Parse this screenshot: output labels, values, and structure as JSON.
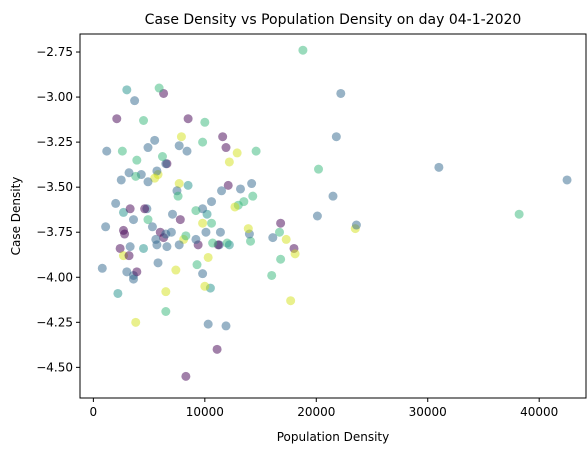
{
  "chart_data": {
    "type": "scatter",
    "title": "Case Density vs Population Density on day 04-1-2020",
    "xlabel": "Population Density",
    "ylabel": "Case Density",
    "xlim": [
      -1200,
      44200
    ],
    "ylim": [
      -4.67,
      -2.65
    ],
    "xticks": [
      0,
      10000,
      20000,
      30000,
      40000
    ],
    "xtick_labels": [
      "0",
      "10000",
      "20000",
      "30000",
      "40000"
    ],
    "yticks": [
      -2.75,
      -3.0,
      -3.25,
      -3.5,
      -3.75,
      -4.0,
      -4.25,
      -4.5
    ],
    "ytick_labels": [
      "−2.75",
      "−3.00",
      "−3.25",
      "−3.50",
      "−3.75",
      "−4.00",
      "−4.25",
      "−4.50"
    ],
    "grid": false,
    "legend": "none",
    "marker_alpha": 0.5,
    "colors": {
      "purple": "#440154",
      "blue": "#31688e",
      "teal": "#21918c",
      "green": "#35b779",
      "yellow": "#d4e21a"
    },
    "points": [
      {
        "x": 18800,
        "y": -2.74,
        "c": "green"
      },
      {
        "x": 22200,
        "y": -2.98,
        "c": "blue"
      },
      {
        "x": 21800,
        "y": -3.22,
        "c": "blue"
      },
      {
        "x": 31000,
        "y": -3.39,
        "c": "blue"
      },
      {
        "x": 42500,
        "y": -3.46,
        "c": "blue"
      },
      {
        "x": 20200,
        "y": -3.4,
        "c": "green"
      },
      {
        "x": 21500,
        "y": -3.55,
        "c": "blue"
      },
      {
        "x": 38200,
        "y": -3.65,
        "c": "green"
      },
      {
        "x": 20100,
        "y": -3.66,
        "c": "blue"
      },
      {
        "x": 23500,
        "y": -3.73,
        "c": "yellow"
      },
      {
        "x": 23600,
        "y": -3.71,
        "c": "blue"
      },
      {
        "x": 16800,
        "y": -3.7,
        "c": "purple"
      },
      {
        "x": 16700,
        "y": -3.75,
        "c": "green"
      },
      {
        "x": 17300,
        "y": -3.79,
        "c": "yellow"
      },
      {
        "x": 16100,
        "y": -3.78,
        "c": "blue"
      },
      {
        "x": 18000,
        "y": -3.84,
        "c": "purple"
      },
      {
        "x": 18100,
        "y": -3.87,
        "c": "yellow"
      },
      {
        "x": 16800,
        "y": -3.9,
        "c": "green"
      },
      {
        "x": 16000,
        "y": -3.99,
        "c": "green"
      },
      {
        "x": 17700,
        "y": -4.13,
        "c": "yellow"
      },
      {
        "x": 14600,
        "y": -3.3,
        "c": "green"
      },
      {
        "x": 14200,
        "y": -3.48,
        "c": "blue"
      },
      {
        "x": 14300,
        "y": -3.55,
        "c": "green"
      },
      {
        "x": 14100,
        "y": -3.8,
        "c": "green"
      },
      {
        "x": 14000,
        "y": -3.76,
        "c": "blue"
      },
      {
        "x": 13900,
        "y": -3.73,
        "c": "yellow"
      },
      {
        "x": 13500,
        "y": -3.58,
        "c": "green"
      },
      {
        "x": 13200,
        "y": -3.51,
        "c": "blue"
      },
      {
        "x": 13000,
        "y": -3.6,
        "c": "green"
      },
      {
        "x": 12900,
        "y": -3.31,
        "c": "yellow"
      },
      {
        "x": 12700,
        "y": -3.61,
        "c": "yellow"
      },
      {
        "x": 12200,
        "y": -3.36,
        "c": "yellow"
      },
      {
        "x": 12100,
        "y": -3.49,
        "c": "purple"
      },
      {
        "x": 11900,
        "y": -3.28,
        "c": "purple"
      },
      {
        "x": 11600,
        "y": -3.22,
        "c": "purple"
      },
      {
        "x": 11500,
        "y": -3.52,
        "c": "blue"
      },
      {
        "x": 11400,
        "y": -3.75,
        "c": "blue"
      },
      {
        "x": 11300,
        "y": -3.82,
        "c": "blue"
      },
      {
        "x": 11200,
        "y": -3.82,
        "c": "purple"
      },
      {
        "x": 12000,
        "y": -3.81,
        "c": "green"
      },
      {
        "x": 12200,
        "y": -3.82,
        "c": "teal"
      },
      {
        "x": 11100,
        "y": -4.4,
        "c": "purple"
      },
      {
        "x": 11900,
        "y": -4.27,
        "c": "blue"
      },
      {
        "x": 10300,
        "y": -4.26,
        "c": "blue"
      },
      {
        "x": 10500,
        "y": -4.06,
        "c": "teal"
      },
      {
        "x": 10000,
        "y": -4.05,
        "c": "yellow"
      },
      {
        "x": 9800,
        "y": -3.98,
        "c": "blue"
      },
      {
        "x": 10300,
        "y": -3.89,
        "c": "yellow"
      },
      {
        "x": 9300,
        "y": -3.93,
        "c": "green"
      },
      {
        "x": 10700,
        "y": -3.81,
        "c": "green"
      },
      {
        "x": 10100,
        "y": -3.75,
        "c": "blue"
      },
      {
        "x": 10600,
        "y": -3.7,
        "c": "green"
      },
      {
        "x": 10200,
        "y": -3.65,
        "c": "teal"
      },
      {
        "x": 9800,
        "y": -3.62,
        "c": "blue"
      },
      {
        "x": 10600,
        "y": -3.58,
        "c": "blue"
      },
      {
        "x": 9800,
        "y": -3.7,
        "c": "yellow"
      },
      {
        "x": 9400,
        "y": -3.82,
        "c": "purple"
      },
      {
        "x": 9200,
        "y": -3.79,
        "c": "blue"
      },
      {
        "x": 10000,
        "y": -3.14,
        "c": "green"
      },
      {
        "x": 9800,
        "y": -3.25,
        "c": "green"
      },
      {
        "x": 9200,
        "y": -3.63,
        "c": "green"
      },
      {
        "x": 8500,
        "y": -3.49,
        "c": "teal"
      },
      {
        "x": 8100,
        "y": -3.79,
        "c": "yellow"
      },
      {
        "x": 8300,
        "y": -3.77,
        "c": "green"
      },
      {
        "x": 7700,
        "y": -3.82,
        "c": "blue"
      },
      {
        "x": 7400,
        "y": -3.96,
        "c": "yellow"
      },
      {
        "x": 7700,
        "y": -3.48,
        "c": "yellow"
      },
      {
        "x": 7500,
        "y": -3.52,
        "c": "blue"
      },
      {
        "x": 7600,
        "y": -3.55,
        "c": "green"
      },
      {
        "x": 7700,
        "y": -3.27,
        "c": "blue"
      },
      {
        "x": 7900,
        "y": -3.22,
        "c": "yellow"
      },
      {
        "x": 7800,
        "y": -3.68,
        "c": "purple"
      },
      {
        "x": 7100,
        "y": -3.65,
        "c": "blue"
      },
      {
        "x": 7000,
        "y": -3.75,
        "c": "blue"
      },
      {
        "x": 8500,
        "y": -3.12,
        "c": "purple"
      },
      {
        "x": 8400,
        "y": -3.3,
        "c": "blue"
      },
      {
        "x": 6600,
        "y": -3.37,
        "c": "purple"
      },
      {
        "x": 6500,
        "y": -3.37,
        "c": "blue"
      },
      {
        "x": 6200,
        "y": -3.33,
        "c": "green"
      },
      {
        "x": 5800,
        "y": -3.43,
        "c": "yellow"
      },
      {
        "x": 5700,
        "y": -3.41,
        "c": "blue"
      },
      {
        "x": 5500,
        "y": -3.45,
        "c": "yellow"
      },
      {
        "x": 6300,
        "y": -2.98,
        "c": "purple"
      },
      {
        "x": 5900,
        "y": -2.95,
        "c": "green"
      },
      {
        "x": 5500,
        "y": -3.24,
        "c": "blue"
      },
      {
        "x": 4900,
        "y": -3.28,
        "c": "blue"
      },
      {
        "x": 4500,
        "y": -3.13,
        "c": "green"
      },
      {
        "x": 3900,
        "y": -3.35,
        "c": "green"
      },
      {
        "x": 3700,
        "y": -3.02,
        "c": "blue"
      },
      {
        "x": 3000,
        "y": -2.96,
        "c": "teal"
      },
      {
        "x": 4800,
        "y": -3.62,
        "c": "blue"
      },
      {
        "x": 4600,
        "y": -3.62,
        "c": "purple"
      },
      {
        "x": 4900,
        "y": -3.68,
        "c": "green"
      },
      {
        "x": 5300,
        "y": -3.72,
        "c": "blue"
      },
      {
        "x": 4900,
        "y": -3.47,
        "c": "blue"
      },
      {
        "x": 4300,
        "y": -3.43,
        "c": "blue"
      },
      {
        "x": 3800,
        "y": -3.44,
        "c": "green"
      },
      {
        "x": 3200,
        "y": -3.42,
        "c": "blue"
      },
      {
        "x": 2500,
        "y": -3.46,
        "c": "blue"
      },
      {
        "x": 2700,
        "y": -3.64,
        "c": "teal"
      },
      {
        "x": 3300,
        "y": -3.62,
        "c": "purple"
      },
      {
        "x": 3600,
        "y": -3.68,
        "c": "blue"
      },
      {
        "x": 2000,
        "y": -3.59,
        "c": "blue"
      },
      {
        "x": 1200,
        "y": -3.3,
        "c": "blue"
      },
      {
        "x": 2600,
        "y": -3.3,
        "c": "green"
      },
      {
        "x": 2100,
        "y": -3.12,
        "c": "purple"
      },
      {
        "x": 1100,
        "y": -3.72,
        "c": "blue"
      },
      {
        "x": 2700,
        "y": -3.74,
        "c": "purple"
      },
      {
        "x": 2800,
        "y": -3.76,
        "c": "purple"
      },
      {
        "x": 2400,
        "y": -3.84,
        "c": "purple"
      },
      {
        "x": 3300,
        "y": -3.83,
        "c": "blue"
      },
      {
        "x": 2700,
        "y": -3.88,
        "c": "yellow"
      },
      {
        "x": 3200,
        "y": -3.88,
        "c": "purple"
      },
      {
        "x": 800,
        "y": -3.95,
        "c": "blue"
      },
      {
        "x": 3000,
        "y": -3.97,
        "c": "blue"
      },
      {
        "x": 3600,
        "y": -3.99,
        "c": "blue"
      },
      {
        "x": 3900,
        "y": -3.97,
        "c": "purple"
      },
      {
        "x": 3600,
        "y": -4.01,
        "c": "blue"
      },
      {
        "x": 2200,
        "y": -4.09,
        "c": "teal"
      },
      {
        "x": 3800,
        "y": -4.25,
        "c": "yellow"
      },
      {
        "x": 4500,
        "y": -3.84,
        "c": "teal"
      },
      {
        "x": 5700,
        "y": -3.82,
        "c": "blue"
      },
      {
        "x": 5800,
        "y": -3.92,
        "c": "blue"
      },
      {
        "x": 6300,
        "y": -3.78,
        "c": "purple"
      },
      {
        "x": 6000,
        "y": -3.75,
        "c": "purple"
      },
      {
        "x": 6500,
        "y": -3.76,
        "c": "blue"
      },
      {
        "x": 5600,
        "y": -3.79,
        "c": "blue"
      },
      {
        "x": 6600,
        "y": -3.83,
        "c": "blue"
      },
      {
        "x": 6500,
        "y": -4.08,
        "c": "yellow"
      },
      {
        "x": 6500,
        "y": -4.19,
        "c": "green"
      },
      {
        "x": 8300,
        "y": -4.55,
        "c": "purple"
      }
    ]
  }
}
